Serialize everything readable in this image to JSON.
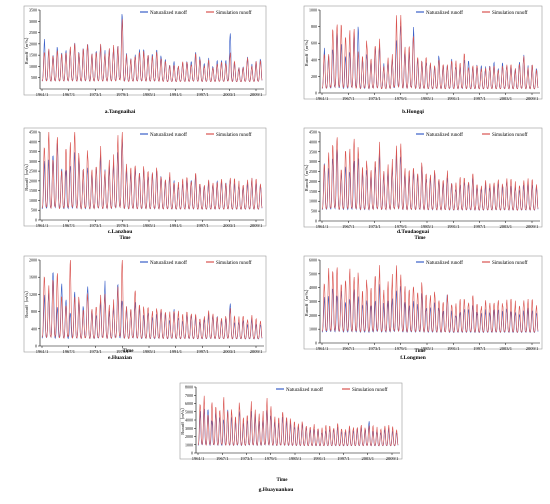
{
  "figure": {
    "legend": {
      "naturalized": "Naturalized runoff",
      "simulation": "Simulation runoff"
    }
  },
  "colors": {
    "naturalized": "#3a5fc8",
    "simulation": "#d9534f",
    "axis": "#000000"
  },
  "chart_data": [
    {
      "type": "line",
      "panel": "a",
      "subtitle": "a.Tangnaihai",
      "xlabel": "",
      "ylabel": "Runoff（m³/s）",
      "ylim": [
        0,
        3500
      ],
      "yticks": [
        500,
        1000,
        1500,
        2000,
        2500,
        3000,
        3500
      ],
      "xticks": [
        "1961/1",
        "1967/1",
        "1973/1",
        "1979/1",
        "1985/1",
        "1991/1",
        "1997/1",
        "2003/1",
        "2009/1"
      ],
      "peaks_naturalized": [
        2050,
        1700,
        1550,
        1850,
        1650,
        1750,
        1800,
        1950,
        1600,
        1750,
        2000,
        1500,
        1650,
        1900,
        1600,
        1750,
        1850,
        1850,
        3480,
        1550,
        1300,
        1500,
        1750,
        1700,
        1550,
        1500,
        1650,
        1450,
        1300,
        1050,
        1150,
        1050,
        1200,
        1250,
        1200,
        1550,
        1400,
        1100,
        1300,
        1000,
        1200,
        1250,
        1200,
        2500,
        1200,
        950,
        1000,
        1400,
        1050,
        1200,
        1350
      ],
      "peaks_simulation": [
        1700,
        1650,
        1500,
        1800,
        1600,
        1700,
        1750,
        1950,
        1550,
        1700,
        1950,
        1450,
        1600,
        1850,
        1550,
        1700,
        1800,
        1800,
        3000,
        1500,
        1250,
        1450,
        1700,
        1650,
        1500,
        1450,
        1600,
        1400,
        1250,
        1000,
        1100,
        1000,
        1150,
        1200,
        1150,
        1500,
        1350,
        1050,
        1250,
        950,
        1150,
        1200,
        1150,
        1650,
        1150,
        900,
        950,
        1350,
        1000,
        1150,
        1300
      ],
      "base": 300
    },
    {
      "type": "line",
      "panel": "b",
      "subtitle": "b.Hongqi",
      "xlabel": "",
      "ylabel": "Runoff（m³/s）",
      "ylim": [
        0,
        1000
      ],
      "yticks": [
        0,
        200,
        400,
        600,
        800,
        1000
      ],
      "xticks": [
        "1961/1",
        "1967/1",
        "1973/1",
        "1979/1",
        "1985/1",
        "1991/1",
        "1997/1",
        "2003/1",
        "2009/1"
      ],
      "peaks_naturalized": [
        500,
        440,
        550,
        720,
        610,
        450,
        520,
        690,
        780,
        400,
        470,
        360,
        530,
        560,
        330,
        380,
        410,
        620,
        850,
        500,
        470,
        780,
        410,
        370,
        380,
        330,
        300,
        440,
        330,
        330,
        380,
        340,
        330,
        410,
        380,
        300,
        330,
        320,
        300,
        330,
        350,
        290,
        340,
        330,
        330,
        290,
        380,
        450,
        310,
        330,
        300
      ],
      "peaks_simulation": [
        490,
        430,
        800,
        880,
        860,
        720,
        700,
        740,
        480,
        420,
        620,
        380,
        560,
        600,
        320,
        400,
        430,
        880,
        910,
        540,
        520,
        690,
        450,
        380,
        430,
        360,
        320,
        420,
        350,
        320,
        410,
        380,
        340,
        480,
        330,
        310,
        340,
        300,
        290,
        320,
        340,
        280,
        330,
        350,
        320,
        280,
        350,
        430,
        300,
        320,
        290
      ],
      "base": 40
    },
    {
      "type": "line",
      "panel": "c",
      "subtitle": "c.Lanzhou",
      "xlabel": "Time",
      "ylabel": "Runoff（m³/s）",
      "ylim": [
        0,
        4500
      ],
      "yticks": [
        0,
        500,
        1000,
        1500,
        2000,
        2500,
        3000,
        3500,
        4000,
        4500
      ],
      "xticks": [
        "1961/1",
        "1967/1",
        "1973/1",
        "1979/1",
        "1985/1",
        "1991/1",
        "1997/1",
        "2003/1",
        "2009/1"
      ],
      "peaks_naturalized": [
        2800,
        3000,
        3450,
        3900,
        2700,
        2600,
        2900,
        3300,
        3100,
        2500,
        2700,
        2300,
        2600,
        3200,
        2400,
        2700,
        2900,
        3400,
        4300,
        2600,
        2300,
        2600,
        2400,
        2500,
        2300,
        2300,
        2400,
        2200,
        2000,
        2200,
        1900,
        1800,
        1900,
        2100,
        2000,
        2200,
        1800,
        1700,
        1900,
        1800,
        1900,
        2000,
        1800,
        2100,
        1900,
        1800,
        1700,
        1900,
        2000,
        1900,
        1800
      ],
      "peaks_simulation": [
        3900,
        4300,
        3200,
        4500,
        2600,
        3900,
        3700,
        4400,
        3300,
        2500,
        3500,
        2400,
        2700,
        3500,
        2500,
        2900,
        3100,
        4100,
        4400,
        2800,
        2500,
        2800,
        2500,
        2700,
        2500,
        2400,
        2600,
        2300,
        2100,
        2300,
        2000,
        1900,
        2000,
        2200,
        2100,
        2300,
        1900,
        1800,
        2000,
        1900,
        2000,
        2100,
        1900,
        2200,
        2000,
        1900,
        1800,
        2000,
        2100,
        2000,
        1900
      ],
      "base": 500
    },
    {
      "type": "line",
      "panel": "d",
      "subtitle": "d.Toudaoguai",
      "xlabel": "Time",
      "ylabel": "Runoff（m³/s）",
      "ylim": [
        0,
        4500
      ],
      "yticks": [
        0,
        500,
        1000,
        1500,
        2000,
        2500,
        3000,
        3500,
        4000,
        4500
      ],
      "xticks": [
        "1961/1",
        "1967/1",
        "1973/1",
        "1979/1",
        "1985/1",
        "1991/1",
        "1997/1",
        "2003/1",
        "2009/1"
      ],
      "peaks_naturalized": [
        2700,
        2600,
        3300,
        3600,
        2500,
        2800,
        2600,
        2900,
        3100,
        2400,
        2600,
        2200,
        2700,
        3300,
        2300,
        2500,
        2700,
        3300,
        3400,
        2400,
        2200,
        2500,
        2300,
        2700,
        2200,
        2100,
        2300,
        2000,
        1900,
        2200,
        1800,
        1700,
        1900,
        2000,
        1900,
        2100,
        1700,
        1600,
        1800,
        1700,
        1800,
        1900,
        1700,
        2000,
        1800,
        1700,
        1600,
        1800,
        1900,
        1800,
        1700
      ],
      "peaks_simulation": [
        3000,
        3200,
        4000,
        4500,
        2700,
        3800,
        3400,
        4000,
        3600,
        2600,
        3000,
        2400,
        3000,
        3700,
        2500,
        2700,
        2900,
        3600,
        3800,
        2600,
        2400,
        2700,
        2500,
        2900,
        2400,
        2300,
        2500,
        2200,
        2100,
        2400,
        2000,
        1900,
        2100,
        2200,
        2100,
        2300,
        1900,
        1800,
        2000,
        1900,
        2000,
        2100,
        1900,
        2200,
        2000,
        1900,
        1800,
        2000,
        2100,
        2000,
        1900
      ],
      "base": 500
    },
    {
      "type": "line",
      "panel": "e",
      "subtitle": "e.Huaxian",
      "xlabel": "Time",
      "ylabel": "Runoff（m³/s）",
      "ylim": [
        0,
        2000
      ],
      "yticks": [
        0,
        400,
        800,
        1200,
        1600,
        2000
      ],
      "xticks": [
        "1961/1",
        "1967/1",
        "1973/1",
        "1979/1",
        "1985/1",
        "1991/1",
        "1997/1",
        "2003/1",
        "2009/1"
      ],
      "peaks_naturalized": [
        1100,
        1200,
        1800,
        900,
        1500,
        1100,
        800,
        1200,
        1000,
        900,
        1400,
        800,
        700,
        1000,
        1400,
        800,
        900,
        1400,
        1100,
        900,
        800,
        1000,
        900,
        700,
        800,
        650,
        700,
        800,
        750,
        600,
        800,
        700,
        600,
        750,
        700,
        650,
        550,
        600,
        700,
        700,
        650,
        600,
        600,
        1000,
        550,
        550,
        600,
        500,
        600,
        500,
        500
      ],
      "peaks_simulation": [
        1700,
        1300,
        1600,
        1800,
        1200,
        1000,
        1900,
        1100,
        1100,
        800,
        1200,
        800,
        900,
        1100,
        1200,
        900,
        1000,
        1300,
        2000,
        900,
        800,
        1300,
        1000,
        900,
        900,
        800,
        850,
        900,
        800,
        750,
        850,
        800,
        700,
        800,
        800,
        700,
        650,
        700,
        800,
        750,
        700,
        650,
        700,
        900,
        650,
        650,
        700,
        600,
        700,
        600,
        600
      ],
      "base": 150
    },
    {
      "type": "line",
      "panel": "f",
      "subtitle": "f.Longmen",
      "xlabel": "Time",
      "ylabel": "Runoff（m³/s）",
      "ylim": [
        0,
        6000
      ],
      "yticks": [
        0,
        1000,
        2000,
        3000,
        4000,
        5000,
        6000
      ],
      "xticks": [
        "1961/1",
        "1967/1",
        "1973/1",
        "1979/1",
        "1985/1",
        "1991/1",
        "1997/1",
        "2003/1",
        "2009/1"
      ],
      "peaks_naturalized": [
        3100,
        3300,
        4100,
        3400,
        3900,
        3000,
        3300,
        3700,
        3300,
        2700,
        3100,
        2600,
        3000,
        4100,
        2700,
        3000,
        3200,
        3700,
        4300,
        2900,
        2600,
        3000,
        2800,
        3500,
        2600,
        2500,
        2800,
        2500,
        2300,
        3500,
        2200,
        2100,
        2300,
        2500,
        2400,
        2600,
        2200,
        2100,
        2300,
        2200,
        2300,
        2400,
        2200,
        2500,
        2300,
        2200,
        2100,
        2300,
        2400,
        2300,
        2200
      ],
      "peaks_simulation": [
        4500,
        5000,
        5400,
        5800,
        4400,
        4800,
        5000,
        4600,
        4900,
        3600,
        4500,
        3700,
        4800,
        5200,
        3800,
        4200,
        4600,
        5300,
        4800,
        4000,
        3600,
        4100,
        3800,
        4300,
        3500,
        3400,
        3600,
        3200,
        3000,
        3300,
        2900,
        2800,
        3000,
        3200,
        3100,
        3300,
        2900,
        2700,
        3000,
        2900,
        3000,
        3100,
        2900,
        3200,
        3000,
        2900,
        2700,
        3000,
        3100,
        3000,
        2800
      ],
      "base": 700
    },
    {
      "type": "line",
      "panel": "g",
      "subtitle": "g.Huayuankou",
      "xlabel": "Time",
      "ylabel": "Runoff（m³/s）",
      "ylim": [
        0,
        8000
      ],
      "yticks": [
        0,
        1000,
        2000,
        3000,
        4000,
        5000,
        6000,
        7000,
        8000
      ],
      "xticks": [
        "1961/1",
        "1967/1",
        "1973/1",
        "1979/1",
        "1985/1",
        "1991/1",
        "1997/1",
        "2003/1",
        "2009/1"
      ],
      "peaks_naturalized": [
        4700,
        5200,
        5500,
        3900,
        5100,
        4400,
        4200,
        5000,
        4300,
        3800,
        5100,
        3500,
        3900,
        4900,
        4400,
        3800,
        4000,
        5100,
        4700,
        3700,
        3500,
        4300,
        3900,
        3600,
        3300,
        3100,
        3300,
        3000,
        2800,
        2900,
        2700,
        2600,
        2800,
        2900,
        2800,
        3000,
        2600,
        2500,
        2800,
        2700,
        2800,
        3000,
        2700,
        3900,
        2700,
        2600,
        2500,
        2800,
        2900,
        2600,
        2500
      ],
      "peaks_simulation": [
        6200,
        6400,
        4800,
        6500,
        5800,
        5500,
        6300,
        4900,
        5100,
        4200,
        6000,
        4000,
        4500,
        5800,
        5200,
        4500,
        4700,
        6300,
        5500,
        4300,
        4000,
        5000,
        4500,
        4100,
        3800,
        3500,
        3700,
        3400,
        3200,
        3300,
        3100,
        3000,
        3200,
        3300,
        3200,
        3400,
        3000,
        2900,
        3200,
        3100,
        3200,
        3400,
        3100,
        3400,
        3100,
        3000,
        2900,
        3200,
        3300,
        3000,
        2900
      ],
      "base": 800
    }
  ]
}
